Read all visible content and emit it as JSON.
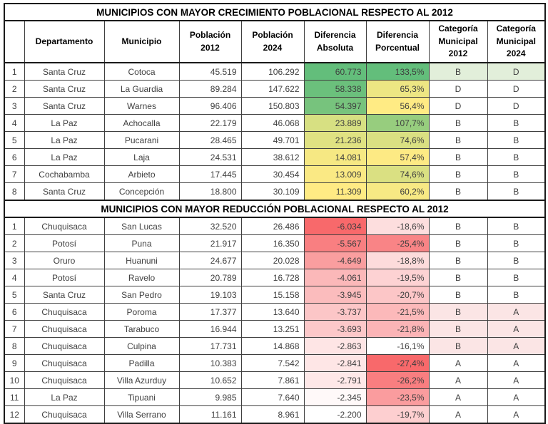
{
  "chart_data": {
    "type": "table",
    "column_headers": [
      "",
      "Departamento",
      "Municipio",
      "Población 2012",
      "Población 2024",
      "Diferencia Absoluta",
      "Diferencia Porcentual",
      "Categoría Municipal 2012",
      "Categoría Municipal 2024"
    ],
    "column_names": [
      "row-index",
      "departamento",
      "municipio",
      "poblacion-2012",
      "poblacion-2024",
      "diferencia-absoluta",
      "diferencia-porcentual",
      "categoria-municipal-2012",
      "categoria-municipal-2024"
    ],
    "conditional_formatting": {
      "growth_scale_low": "#FFEB84",
      "growth_scale_high": "#63BE7B",
      "reduction_scale_low": "#FFFFFF",
      "reduction_scale_high": "#F8696B",
      "category_highlight_green": "#E2EFDA",
      "category_highlight_pink": "#FBE5E5"
    },
    "sections": [
      {
        "title": "MUNICIPIOS CON MAYOR CRECIMIENTO POBLACIONAL RESPECTO AL 2012",
        "rows": [
          {
            "cells": [
              "1",
              "Santa Cruz",
              "Cotoca",
              "45.519",
              "106.292",
              "60.773",
              "133,5%",
              "B",
              "D"
            ],
            "colors": {
              "5": "#63BE7B",
              "6": "#63BE7B",
              "7": "#E2EFDA",
              "8": "#E2EFDA"
            }
          },
          {
            "cells": [
              "2",
              "Santa Cruz",
              "La Guardia",
              "89.284",
              "147.622",
              "58.338",
              "65,3%",
              "D",
              "D"
            ],
            "colors": {
              "5": "#6BC07C",
              "6": "#EDE683"
            }
          },
          {
            "cells": [
              "3",
              "Santa Cruz",
              "Warnes",
              "96.406",
              "150.803",
              "54.397",
              "56,4%",
              "D",
              "D"
            ],
            "colors": {
              "5": "#77C37D",
              "6": "#FFEB84"
            }
          },
          {
            "cells": [
              "4",
              "La Paz",
              "Achocalla",
              "22.179",
              "46.068",
              "23.889",
              "107,7%",
              "B",
              "B"
            ],
            "colors": {
              "5": "#D7E082",
              "6": "#97CD7E"
            }
          },
          {
            "cells": [
              "5",
              "La Paz",
              "Pucarani",
              "28.465",
              "49.701",
              "21.236",
              "74,6%",
              "B",
              "B"
            ],
            "colors": {
              "5": "#E0E282",
              "6": "#DAE082"
            }
          },
          {
            "cells": [
              "6",
              "La Paz",
              "Laja",
              "24.531",
              "38.612",
              "14.081",
              "57,4%",
              "B",
              "B"
            ],
            "colors": {
              "5": "#F6E883",
              "6": "#FDEA84"
            }
          },
          {
            "cells": [
              "7",
              "Cochabamba",
              "Arbieto",
              "17.445",
              "30.454",
              "13.009",
              "74,6%",
              "B",
              "B"
            ],
            "colors": {
              "5": "#FAE984",
              "6": "#DAE082"
            }
          },
          {
            "cells": [
              "8",
              "Santa Cruz",
              "Concepción",
              "18.800",
              "30.109",
              "11.309",
              "60,2%",
              "B",
              "B"
            ],
            "colors": {
              "5": "#FFEB84",
              "6": "#F7E984"
            }
          }
        ]
      },
      {
        "title": "MUNICIPIOS CON MAYOR REDUCCIÓN POBLACIONAL RESPECTO AL 2012",
        "rows": [
          {
            "cells": [
              "1",
              "Chuquisaca",
              "San Lucas",
              "32.520",
              "26.486",
              "-6.034",
              "-18,6%",
              "B",
              "B"
            ],
            "colors": {
              "5": "#F8696B",
              "6": "#FDDEDE"
            }
          },
          {
            "cells": [
              "2",
              "Potosí",
              "Puna",
              "21.917",
              "16.350",
              "-5.567",
              "-25,4%",
              "B",
              "B"
            ],
            "colors": {
              "5": "#F97F81",
              "6": "#F98486"
            }
          },
          {
            "cells": [
              "3",
              "Oruro",
              "Huanuni",
              "24.677",
              "20.028",
              "-4.649",
              "-18,8%",
              "B",
              "B"
            ],
            "colors": {
              "5": "#FA9E9F",
              "6": "#FDDBDB"
            }
          },
          {
            "cells": [
              "4",
              "Potosí",
              "Ravelo",
              "20.789",
              "16.728",
              "-4.061",
              "-19,5%",
              "B",
              "B"
            ],
            "colors": {
              "5": "#FBB8B9",
              "6": "#FDD2D3"
            }
          },
          {
            "cells": [
              "5",
              "Santa Cruz",
              "San Pedro",
              "19.103",
              "15.158",
              "-3.945",
              "-20,7%",
              "B",
              "B"
            ],
            "colors": {
              "5": "#FBBCBD",
              "6": "#FCC6C7"
            }
          },
          {
            "cells": [
              "6",
              "Chuquisaca",
              "Poroma",
              "17.377",
              "13.640",
              "-3.737",
              "-21,5%",
              "B",
              "A"
            ],
            "colors": {
              "5": "#FCC6C7",
              "6": "#FCB9BA",
              "7": "#FBE5E5",
              "8": "#FBE5E5"
            }
          },
          {
            "cells": [
              "7",
              "Chuquisaca",
              "Tarabuco",
              "16.944",
              "13.251",
              "-3.693",
              "-21,8%",
              "B",
              "A"
            ],
            "colors": {
              "5": "#FCC8C9",
              "6": "#FBB4B6",
              "7": "#FBE5E5",
              "8": "#FBE5E5"
            }
          },
          {
            "cells": [
              "8",
              "Chuquisaca",
              "Culpina",
              "17.731",
              "14.868",
              "-2.863",
              "-16,1%",
              "B",
              "A"
            ],
            "colors": {
              "5": "#FEE5E5",
              "6": "#FFFFFF",
              "7": "#FBE5E5",
              "8": "#FBE5E5"
            }
          },
          {
            "cells": [
              "9",
              "Chuquisaca",
              "Padilla",
              "10.383",
              "7.542",
              "-2.841",
              "-27,4%",
              "A",
              "A"
            ],
            "colors": {
              "5": "#FEE6E6",
              "6": "#F8696B"
            }
          },
          {
            "cells": [
              "10",
              "Chuquisaca",
              "Villa Azurduy",
              "10.652",
              "7.861",
              "-2.791",
              "-26,2%",
              "A",
              "A"
            ],
            "colors": {
              "5": "#FEE8E8",
              "6": "#F97E80"
            }
          },
          {
            "cells": [
              "11",
              "La Paz",
              "Tipuani",
              "9.985",
              "7.640",
              "-2.345",
              "-23,5%",
              "A",
              "A"
            ],
            "colors": {
              "5": "#FFF9F9",
              "6": "#FA9C9E"
            }
          },
          {
            "cells": [
              "12",
              "Chuquisaca",
              "Villa Serrano",
              "11.161",
              "8.961",
              "-2.200",
              "-19,7%",
              "A",
              "A"
            ],
            "colors": {
              "5": "#FFFFFF",
              "6": "#FDCFD0"
            }
          }
        ]
      }
    ]
  }
}
